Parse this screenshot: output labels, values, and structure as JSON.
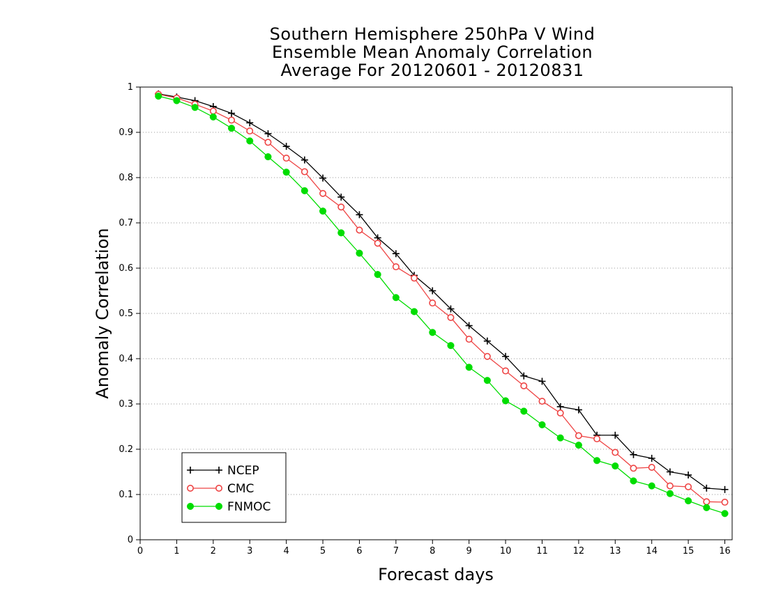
{
  "chart_data": {
    "type": "line",
    "title_lines": [
      "Southern Hemisphere 250hPa V Wind",
      "Ensemble Mean Anomaly Correlation",
      "Average For 20120601 - 20120831"
    ],
    "xlabel": "Forecast days",
    "ylabel": "Anomaly Correlation",
    "xlim": [
      0,
      16.2
    ],
    "ylim": [
      0,
      1
    ],
    "x_ticks": [
      0,
      1,
      2,
      3,
      4,
      5,
      6,
      7,
      8,
      9,
      10,
      11,
      12,
      13,
      14,
      15,
      16
    ],
    "y_ticks": [
      0,
      0.1,
      0.2,
      0.3,
      0.4,
      0.5,
      0.6,
      0.7,
      0.8,
      0.9,
      1
    ],
    "y_tick_labels": [
      "0",
      "0.1",
      "0.2",
      "0.3",
      "0.4",
      "0.5",
      "0.6",
      "0.7",
      "0.8",
      "0.9",
      "1"
    ],
    "grid": "horizontal dotted",
    "legend_position": "bottom-left",
    "x": [
      0.5,
      1,
      1.5,
      2,
      2.5,
      3,
      3.5,
      4,
      4.5,
      5,
      5.5,
      6,
      6.5,
      7,
      7.5,
      8,
      8.5,
      9,
      9.5,
      10,
      10.5,
      11,
      11.5,
      12,
      12.5,
      13,
      13.5,
      14,
      14.5,
      15,
      15.5,
      16
    ],
    "series": [
      {
        "name": "NCEP",
        "color": "#000000",
        "marker": "plus",
        "values": [
          0.985,
          0.978,
          0.97,
          0.957,
          0.942,
          0.921,
          0.897,
          0.869,
          0.839,
          0.799,
          0.757,
          0.718,
          0.667,
          0.632,
          0.584,
          0.55,
          0.51,
          0.473,
          0.439,
          0.405,
          0.362,
          0.35,
          0.294,
          0.287,
          0.231,
          0.231,
          0.188,
          0.18,
          0.15,
          0.143,
          0.114,
          0.111
        ]
      },
      {
        "name": "CMC",
        "color": "#ee4444",
        "marker": "open-circle",
        "values": [
          0.984,
          0.976,
          0.962,
          0.947,
          0.927,
          0.903,
          0.878,
          0.843,
          0.813,
          0.765,
          0.735,
          0.684,
          0.655,
          0.603,
          0.578,
          0.523,
          0.491,
          0.443,
          0.405,
          0.373,
          0.34,
          0.306,
          0.28,
          0.23,
          0.223,
          0.193,
          0.158,
          0.16,
          0.119,
          0.117,
          0.084,
          0.083
        ]
      },
      {
        "name": "FNMOC",
        "color": "#00dd00",
        "marker": "filled-circle",
        "values": [
          0.98,
          0.97,
          0.955,
          0.934,
          0.909,
          0.881,
          0.846,
          0.812,
          0.771,
          0.726,
          0.678,
          0.633,
          0.586,
          0.535,
          0.504,
          0.458,
          0.429,
          0.381,
          0.352,
          0.307,
          0.284,
          0.254,
          0.225,
          0.209,
          0.175,
          0.163,
          0.13,
          0.119,
          0.102,
          0.086,
          0.071,
          0.058
        ]
      }
    ]
  }
}
